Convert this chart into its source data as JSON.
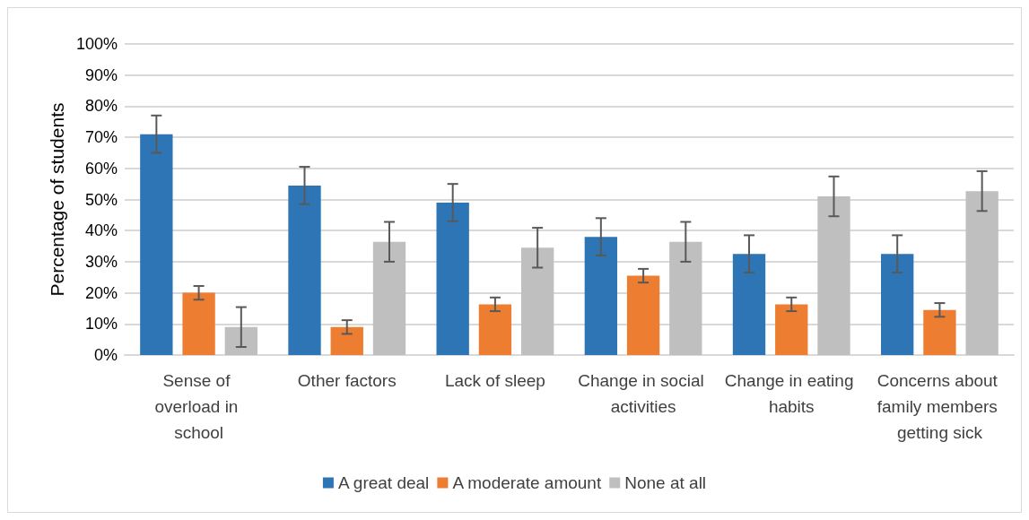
{
  "chart_data": {
    "type": "bar",
    "ylabel": "Percentage of students",
    "categories": [
      "Sense of overload in school",
      "Other factors",
      "Lack of sleep",
      "Change in social activities",
      "Change in eating habits",
      "Concerns about family members getting sick"
    ],
    "series": [
      {
        "name": "A great deal",
        "color": "#2e75b6",
        "values": [
          71,
          54.5,
          49,
          38,
          32.5,
          32.5
        ],
        "errors": [
          6,
          6,
          6,
          6,
          6,
          6
        ]
      },
      {
        "name": "A moderate amount",
        "color": "#ed7d31",
        "values": [
          20,
          9,
          16.3,
          25.5,
          16.3,
          14.5
        ],
        "errors": [
          2.2,
          2.2,
          2.2,
          2.2,
          2.2,
          2.2
        ]
      },
      {
        "name": "None at all",
        "color": "#bfbfbf",
        "values": [
          9,
          36.4,
          34.5,
          36.4,
          51,
          52.7
        ],
        "errors": [
          6.4,
          6.4,
          6.4,
          6.4,
          6.4,
          6.4
        ]
      }
    ],
    "ylim": [
      0,
      100
    ],
    "yticks": [
      {
        "value": 0,
        "label": "0%"
      },
      {
        "value": 10,
        "label": "10%"
      },
      {
        "value": 20,
        "label": "20%"
      },
      {
        "value": 30,
        "label": "30%"
      },
      {
        "value": 40,
        "label": "40%"
      },
      {
        "value": 50,
        "label": "50%"
      },
      {
        "value": 60,
        "label": "60%"
      },
      {
        "value": 70,
        "label": "70%"
      },
      {
        "value": 80,
        "label": "80%"
      },
      {
        "value": 90,
        "label": "90%"
      },
      {
        "value": 100,
        "label": "100%"
      }
    ],
    "grid": "y",
    "legend": "bottom"
  }
}
